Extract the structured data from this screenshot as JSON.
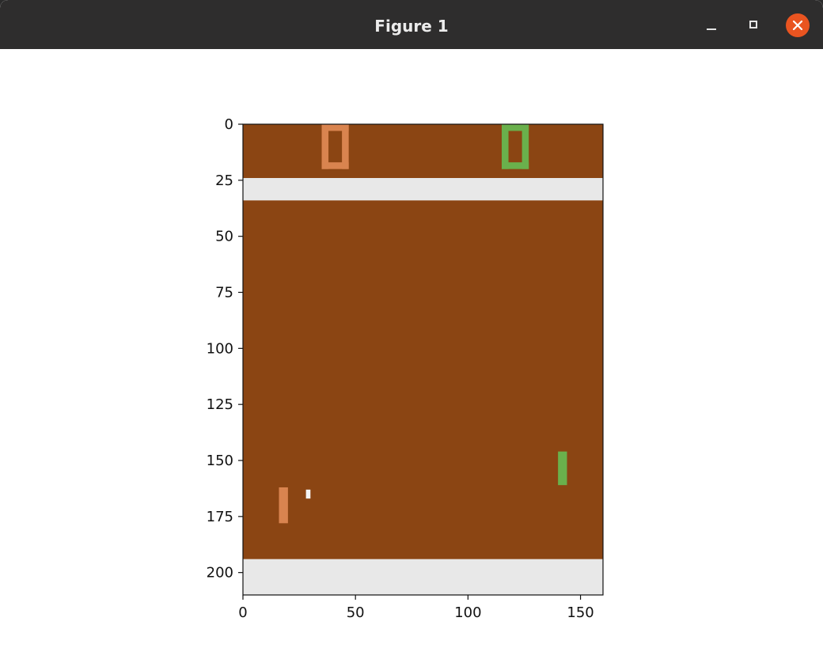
{
  "window": {
    "title": "Figure 1",
    "controls": [
      "minimize-icon",
      "maximize-icon",
      "close-icon"
    ],
    "accent": "#e95420"
  },
  "plot": {
    "type": "image",
    "extent": {
      "x": [
        0,
        160
      ],
      "y": [
        0,
        210
      ]
    },
    "x_ticks": [
      "0",
      "50",
      "100",
      "150"
    ],
    "y_ticks": [
      "0",
      "25",
      "50",
      "75",
      "100",
      "125",
      "150",
      "175",
      "200"
    ],
    "colors": {
      "field": "#8b4513",
      "wall": "#e8e8e8",
      "left_player": "#d9844f",
      "right_player": "#6ab04c",
      "ball": "#f4f4f4"
    },
    "scores": {
      "left": {
        "value": "0",
        "x": 41,
        "y": 10
      },
      "right": {
        "value": "0",
        "x": 121,
        "y": 10
      }
    },
    "walls": {
      "top": [
        24,
        34
      ],
      "bottom": [
        194,
        210
      ]
    },
    "paddles": {
      "left": {
        "x": [
          16,
          20
        ],
        "y": [
          162,
          178
        ]
      },
      "right": {
        "x": [
          140,
          144
        ],
        "y": [
          146,
          161
        ]
      }
    },
    "ball": {
      "x": [
        28,
        30
      ],
      "y": [
        163,
        167
      ]
    }
  }
}
